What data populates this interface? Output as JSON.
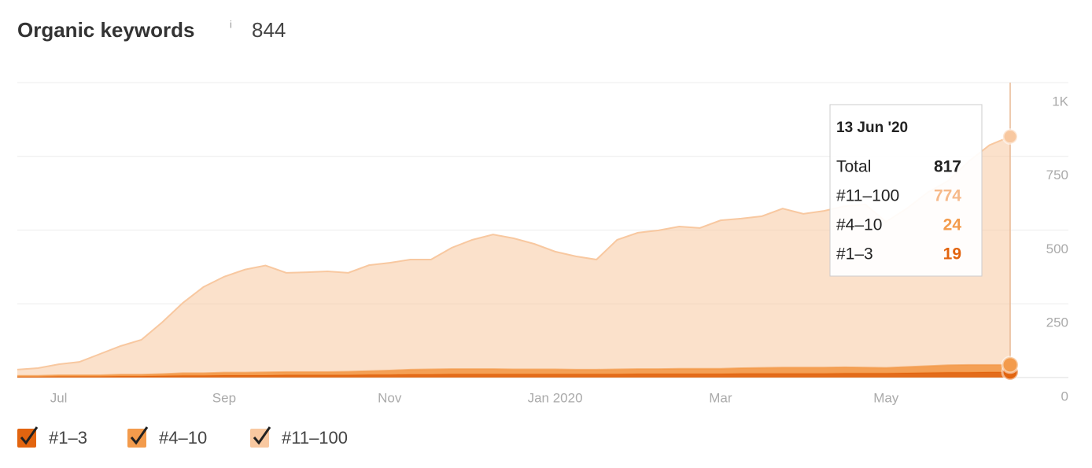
{
  "header": {
    "title": "Organic keywords",
    "info": "i",
    "value": "844"
  },
  "chart_data": {
    "type": "area",
    "stacked": true,
    "categories": [
      null,
      null,
      "Jul",
      null,
      null,
      null,
      null,
      null,
      null,
      null,
      "Sep",
      null,
      null,
      null,
      null,
      null,
      null,
      null,
      "Nov",
      null,
      null,
      null,
      null,
      null,
      null,
      null,
      "Jan 2020",
      null,
      null,
      null,
      null,
      null,
      null,
      null,
      "Mar",
      null,
      null,
      null,
      null,
      null,
      null,
      null,
      "May",
      null,
      null,
      null,
      null,
      null,
      null
    ],
    "series": [
      {
        "name": "#1–3",
        "color": "#e2640f",
        "values": [
          3,
          3,
          4,
          4,
          4,
          5,
          5,
          6,
          7,
          7,
          8,
          8,
          8,
          9,
          9,
          9,
          9,
          10,
          10,
          11,
          11,
          12,
          12,
          12,
          12,
          12,
          12,
          12,
          12,
          12,
          13,
          13,
          13,
          13,
          13,
          14,
          14,
          14,
          14,
          14,
          15,
          15,
          15,
          16,
          17,
          18,
          18,
          19,
          19
        ]
      },
      {
        "name": "#4–10",
        "color": "#f39b4c",
        "values": [
          3,
          3,
          4,
          4,
          4,
          5,
          5,
          6,
          8,
          8,
          9,
          9,
          10,
          10,
          10,
          10,
          11,
          12,
          14,
          16,
          17,
          17,
          17,
          17,
          16,
          16,
          16,
          15,
          15,
          16,
          16,
          16,
          17,
          17,
          17,
          18,
          19,
          20,
          20,
          20,
          20,
          19,
          18,
          20,
          22,
          24,
          25,
          24,
          24
        ]
      },
      {
        "name": "#11–100",
        "color": "#f8c8a0",
        "values": [
          21,
          26,
          37,
          45,
          72,
          97,
          118,
          175,
          238,
          292,
          325,
          349,
          362,
          336,
          338,
          341,
          335,
          359,
          365,
          373,
          372,
          411,
          438,
          456,
          444,
          425,
          399,
          384,
          373,
          439,
          462,
          470,
          482,
          477,
          503,
          507,
          514,
          539,
          521,
          531,
          546,
          553,
          495,
          537,
          588,
          625,
          690,
          745,
          774
        ]
      }
    ],
    "ylim": [
      0,
      1000
    ],
    "yticks": [
      0,
      250,
      500,
      750,
      {
        "value": 1000,
        "label": "1K"
      }
    ],
    "grid": true,
    "tooltip": {
      "date": "13 Jun '20",
      "total_label": "Total",
      "total": 817
    }
  }
}
